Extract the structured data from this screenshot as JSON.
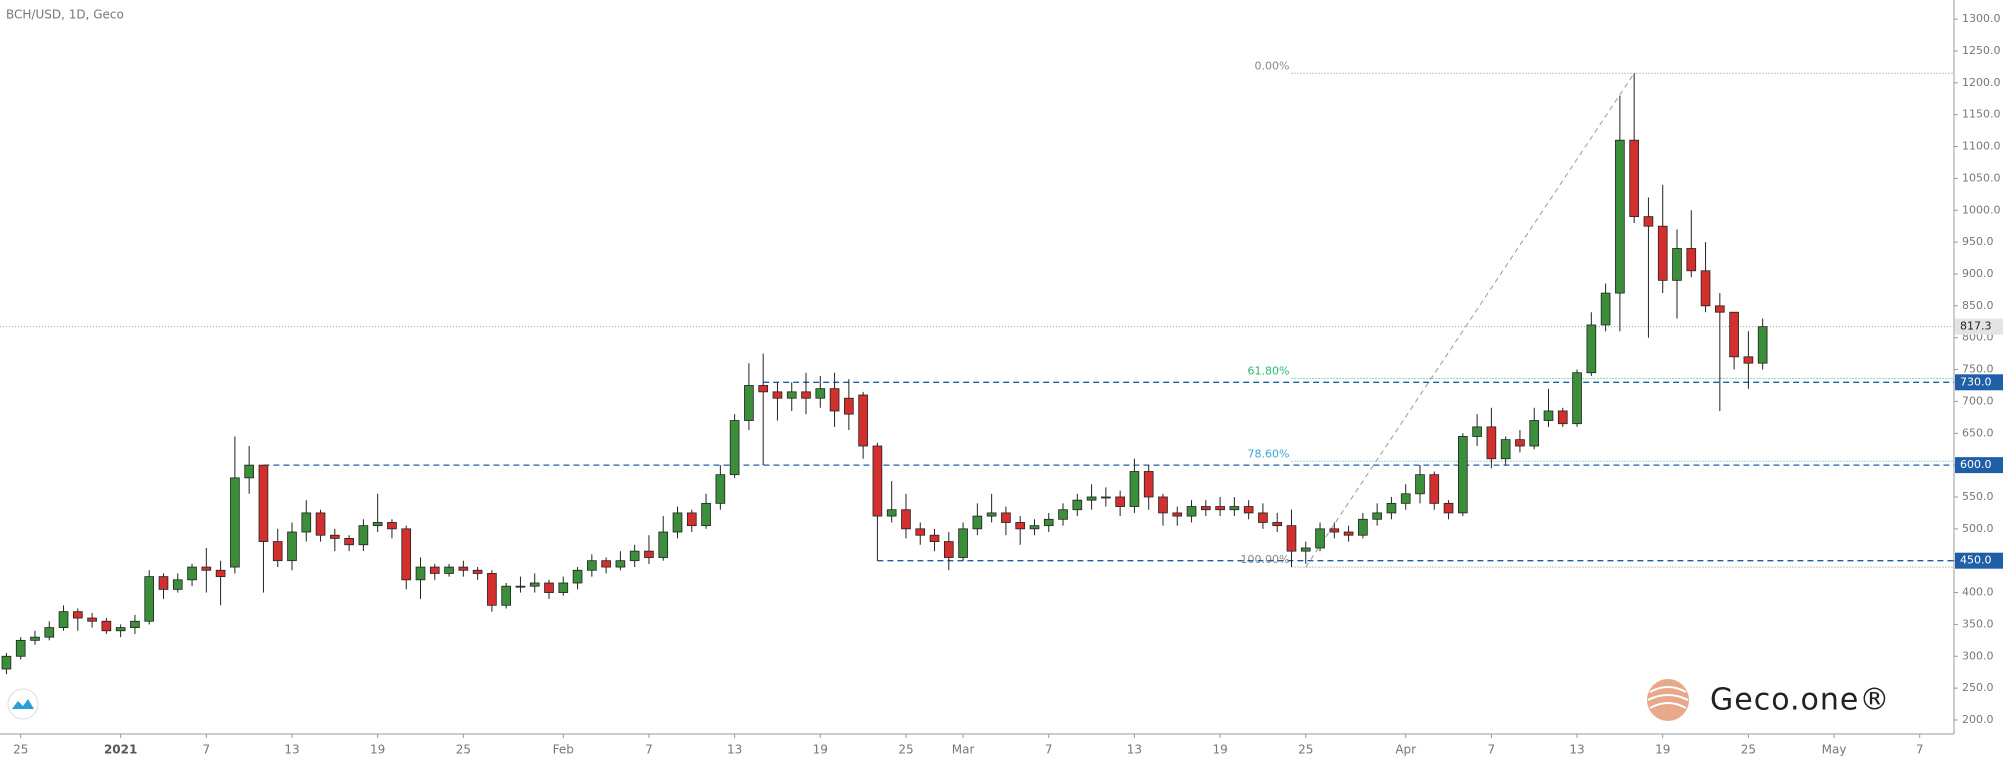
{
  "chart_data": {
    "type": "candlestick",
    "title": "BCH/USD, 1D, Geco",
    "up_color": "#3b8f3b",
    "down_color": "#d32f2f",
    "edge_color": "#222222",
    "open": [
      280,
      300,
      325,
      330,
      345,
      370,
      360,
      355,
      340,
      345,
      355,
      425,
      405,
      420,
      440,
      435,
      440,
      580,
      600,
      480,
      450,
      495,
      525,
      490,
      485,
      475,
      505,
      510,
      500,
      420,
      440,
      430,
      440,
      435,
      430,
      380,
      410,
      410,
      415,
      400,
      415,
      435,
      450,
      440,
      450,
      465,
      455,
      495,
      525,
      505,
      540,
      585,
      670,
      725,
      715,
      705,
      715,
      705,
      720,
      705,
      710,
      630,
      520,
      530,
      500,
      490,
      480,
      455,
      500,
      520,
      525,
      510,
      500,
      505,
      515,
      530,
      545,
      550,
      550,
      535,
      590,
      550,
      525,
      520,
      535,
      535,
      530,
      535,
      525,
      510,
      505,
      465,
      470,
      500,
      495,
      490,
      515,
      525,
      540,
      555,
      585,
      540,
      525,
      645,
      660,
      610,
      640,
      630,
      670,
      685,
      665,
      745,
      820,
      870,
      1110,
      990,
      975,
      890,
      940,
      905,
      850,
      840,
      770,
      760
    ],
    "high": [
      305,
      330,
      340,
      355,
      380,
      375,
      368,
      360,
      350,
      365,
      435,
      430,
      430,
      445,
      470,
      450,
      645,
      630,
      600,
      500,
      510,
      545,
      530,
      500,
      490,
      515,
      555,
      515,
      505,
      455,
      445,
      445,
      450,
      440,
      435,
      415,
      425,
      430,
      420,
      425,
      440,
      460,
      455,
      465,
      475,
      490,
      520,
      535,
      530,
      555,
      600,
      680,
      760,
      775,
      730,
      730,
      745,
      740,
      745,
      735,
      715,
      635,
      575,
      555,
      510,
      500,
      495,
      510,
      540,
      555,
      535,
      520,
      515,
      525,
      540,
      555,
      570,
      565,
      560,
      610,
      600,
      555,
      535,
      545,
      545,
      550,
      550,
      545,
      540,
      525,
      530,
      480,
      510,
      510,
      505,
      525,
      540,
      550,
      570,
      600,
      590,
      545,
      650,
      680,
      690,
      645,
      655,
      690,
      720,
      690,
      750,
      840,
      885,
      1180,
      1215,
      1020,
      1040,
      970,
      1000,
      950,
      870,
      840,
      810,
      830
    ],
    "low": [
      272,
      295,
      318,
      325,
      340,
      340,
      345,
      335,
      330,
      335,
      350,
      390,
      400,
      410,
      400,
      380,
      430,
      555,
      400,
      440,
      435,
      480,
      480,
      465,
      465,
      465,
      495,
      485,
      405,
      390,
      420,
      425,
      425,
      420,
      370,
      375,
      400,
      400,
      390,
      395,
      405,
      425,
      430,
      435,
      440,
      445,
      450,
      485,
      495,
      500,
      530,
      580,
      655,
      600,
      670,
      685,
      680,
      690,
      660,
      655,
      610,
      450,
      510,
      485,
      475,
      465,
      435,
      450,
      490,
      510,
      490,
      475,
      490,
      495,
      505,
      520,
      530,
      535,
      520,
      525,
      530,
      505,
      505,
      510,
      520,
      520,
      520,
      515,
      500,
      495,
      440,
      445,
      465,
      485,
      480,
      485,
      505,
      515,
      530,
      540,
      530,
      515,
      520,
      630,
      595,
      600,
      620,
      625,
      660,
      660,
      660,
      740,
      810,
      810,
      980,
      800,
      870,
      830,
      895,
      840,
      685,
      750,
      720,
      750
    ],
    "close": [
      300,
      325,
      330,
      345,
      370,
      360,
      355,
      340,
      345,
      355,
      425,
      405,
      420,
      440,
      435,
      425,
      580,
      600,
      480,
      450,
      495,
      525,
      490,
      485,
      475,
      505,
      510,
      500,
      420,
      440,
      430,
      440,
      435,
      430,
      380,
      410,
      410,
      415,
      400,
      415,
      435,
      450,
      440,
      450,
      465,
      455,
      495,
      525,
      505,
      540,
      585,
      670,
      725,
      715,
      705,
      715,
      705,
      720,
      685,
      680,
      630,
      520,
      530,
      500,
      490,
      480,
      455,
      500,
      520,
      525,
      510,
      500,
      505,
      515,
      530,
      545,
      550,
      550,
      535,
      590,
      550,
      525,
      520,
      535,
      530,
      530,
      535,
      525,
      510,
      505,
      465,
      470,
      500,
      495,
      490,
      515,
      525,
      540,
      555,
      585,
      540,
      525,
      645,
      660,
      610,
      640,
      630,
      670,
      685,
      665,
      745,
      820,
      870,
      1110,
      990,
      975,
      890,
      940,
      905,
      850,
      840,
      770,
      760,
      817.3
    ],
    "xlim": [
      -0.45,
      136.4
    ],
    "xticks": [
      {
        "value": 1,
        "label": "25"
      },
      {
        "value": 8,
        "label": "2021"
      },
      {
        "value": 14,
        "label": "7"
      },
      {
        "value": 20,
        "label": "13"
      },
      {
        "value": 26,
        "label": "19"
      },
      {
        "value": 32,
        "label": "25"
      },
      {
        "value": 39,
        "label": "Feb"
      },
      {
        "value": 45,
        "label": "7"
      },
      {
        "value": 51,
        "label": "13"
      },
      {
        "value": 57,
        "label": "19"
      },
      {
        "value": 63,
        "label": "25"
      },
      {
        "value": 67,
        "label": "Mar"
      },
      {
        "value": 73,
        "label": "7"
      },
      {
        "value": 79,
        "label": "13"
      },
      {
        "value": 85,
        "label": "19"
      },
      {
        "value": 91,
        "label": "25"
      },
      {
        "value": 98,
        "label": "Apr"
      },
      {
        "value": 104,
        "label": "7"
      },
      {
        "value": 110,
        "label": "13"
      },
      {
        "value": 116,
        "label": "19"
      },
      {
        "value": 122,
        "label": "25"
      },
      {
        "value": 128,
        "label": "May"
      },
      {
        "value": 134,
        "label": "7"
      }
    ],
    "ylim": [
      178,
      1330
    ],
    "yticks": [
      {
        "value": 200,
        "label": "200.0"
      },
      {
        "value": 250,
        "label": "250.0"
      },
      {
        "value": 300,
        "label": "300.0"
      },
      {
        "value": 350,
        "label": "350.0"
      },
      {
        "value": 400,
        "label": "400.0"
      },
      {
        "value": 450,
        "label": "450.0"
      },
      {
        "value": 500,
        "label": "500.0"
      },
      {
        "value": 550,
        "label": "550.0"
      },
      {
        "value": 600,
        "label": "600.0"
      },
      {
        "value": 650,
        "label": "650.0"
      },
      {
        "value": 700,
        "label": "700.0"
      },
      {
        "value": 750,
        "label": "750.0"
      },
      {
        "value": 800,
        "label": "800.0"
      },
      {
        "value": 850,
        "label": "850.0"
      },
      {
        "value": 900,
        "label": "900.0"
      },
      {
        "value": 950,
        "label": "950.0"
      },
      {
        "value": 1000,
        "label": "1000.0"
      },
      {
        "value": 1050,
        "label": "1050.0"
      },
      {
        "value": 1100,
        "label": "1100.0"
      },
      {
        "value": 1150,
        "label": "1150.0"
      },
      {
        "value": 1200,
        "label": "1200.0"
      },
      {
        "value": 1250,
        "label": "1250.0"
      },
      {
        "value": 1300,
        "label": "1300.0"
      }
    ],
    "levels": [
      {
        "value": 730,
        "label": "730.0"
      },
      {
        "value": 600,
        "label": "600.0"
      },
      {
        "value": 450,
        "label": "450.0"
      }
    ],
    "level_color": "#1f5fa8",
    "last_price": {
      "value": 817.3,
      "label": "817.3"
    },
    "fib": [
      {
        "value": 1215,
        "label": "0.00%",
        "color": "#888888"
      },
      {
        "value": 736,
        "label": "61.80%",
        "color": "#2bb673"
      },
      {
        "value": 606,
        "label": "78.60%",
        "color": "#3ba4d8"
      },
      {
        "value": 440,
        "label": "100.00%",
        "color": "#888888"
      }
    ],
    "brand": "Geco.one®"
  }
}
